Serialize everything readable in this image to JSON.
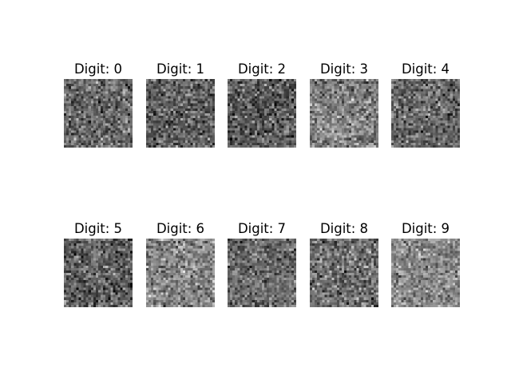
{
  "figure": {
    "panels": [
      {
        "title": "Digit: 0",
        "mean_brightness": 0.42,
        "contrast": 0.22
      },
      {
        "title": "Digit: 1",
        "mean_brightness": 0.38,
        "contrast": 0.21
      },
      {
        "title": "Digit: 2",
        "mean_brightness": 0.36,
        "contrast": 0.22
      },
      {
        "title": "Digit: 3",
        "mean_brightness": 0.5,
        "contrast": 0.22
      },
      {
        "title": "Digit: 4",
        "mean_brightness": 0.4,
        "contrast": 0.21
      },
      {
        "title": "Digit: 5",
        "mean_brightness": 0.37,
        "contrast": 0.22
      },
      {
        "title": "Digit: 6",
        "mean_brightness": 0.52,
        "contrast": 0.22
      },
      {
        "title": "Digit: 7",
        "mean_brightness": 0.41,
        "contrast": 0.2
      },
      {
        "title": "Digit: 8",
        "mean_brightness": 0.44,
        "contrast": 0.23
      },
      {
        "title": "Digit: 9",
        "mean_brightness": 0.53,
        "contrast": 0.19
      }
    ],
    "image_grid_size": 28,
    "colormap": "gray"
  }
}
